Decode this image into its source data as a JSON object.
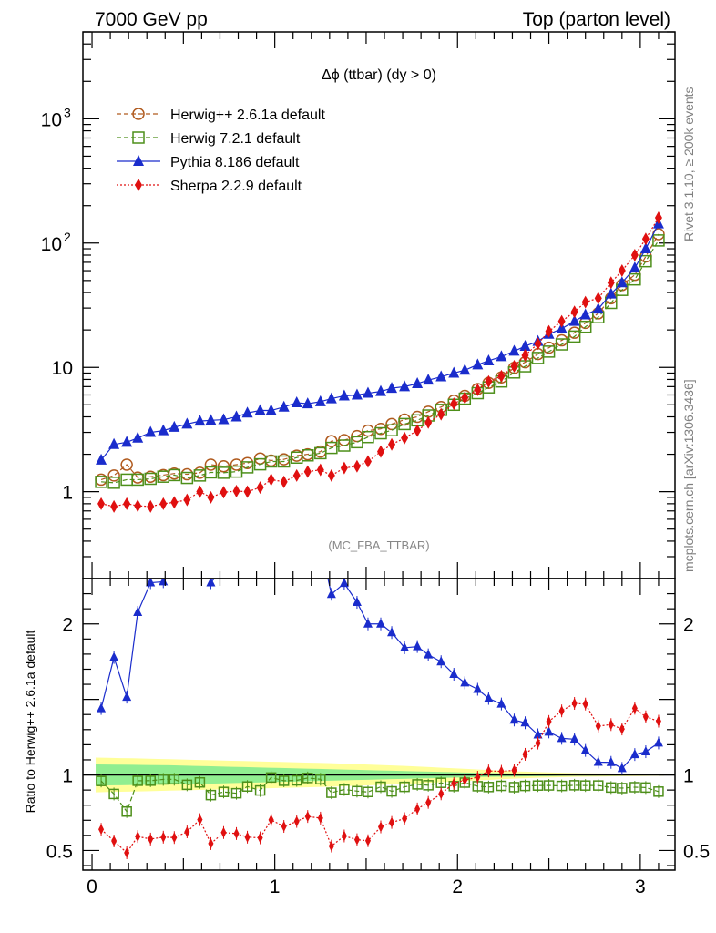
{
  "header": {
    "left": "7000 GeV pp",
    "right": "Top (parton level)"
  },
  "side_labels": {
    "rivet": "Rivet 3.1.10, ≥ 200k events",
    "mcplots": "mcplots.cern.ch [arXiv:1306.3436]"
  },
  "chart_data": {
    "type": "line",
    "title": "Δϕ (ttbar) (dy > 0)",
    "analysis_label": "(MC_FBA_TTBAR)",
    "xlim": [
      -0.05,
      3.19
    ],
    "x_ticks": [
      "0",
      "1",
      "2",
      "3"
    ],
    "main_panel": {
      "yscale": "log",
      "ylim": [
        0.2,
        5000
      ],
      "y_ticks": [
        {
          "value": 1,
          "label": "1"
        },
        {
          "value": 10,
          "label": "10"
        },
        {
          "value": 100,
          "label": "10",
          "exp": "2"
        },
        {
          "value": 1000,
          "label": "10",
          "exp": "3"
        }
      ]
    },
    "ratio_panel": {
      "ylabel": "Ratio to Herwig++ 2.6.1a default",
      "ylim": [
        0.37,
        2.3
      ],
      "y_ticks": [
        {
          "value": 0.5,
          "label": "0.5"
        },
        {
          "value": 1,
          "label": "1"
        },
        {
          "value": 2,
          "label": "2"
        }
      ],
      "band_outer": [
        0.115,
        0.113,
        0.111,
        0.11,
        0.108,
        0.106,
        0.104,
        0.102,
        0.1,
        0.098,
        0.096,
        0.094,
        0.092,
        0.09,
        0.088,
        0.086,
        0.084,
        0.082,
        0.08,
        0.078,
        0.075,
        0.072,
        0.069,
        0.066,
        0.063,
        0.06,
        0.056,
        0.052,
        0.048,
        0.044,
        0.04,
        0.036,
        0.032,
        0.028,
        0.024,
        0.021,
        0.018,
        0.016,
        0.014,
        0.012,
        0.011,
        0.01,
        0.009,
        0.008,
        0.007,
        0.006,
        0.005,
        0.004
      ],
      "band_inner": [
        0.07,
        0.069,
        0.068,
        0.067,
        0.066,
        0.065,
        0.064,
        0.062,
        0.06,
        0.058,
        0.056,
        0.054,
        0.052,
        0.05,
        0.048,
        0.046,
        0.044,
        0.042,
        0.04,
        0.038,
        0.036,
        0.034,
        0.032,
        0.03,
        0.028,
        0.026,
        0.024,
        0.022,
        0.02,
        0.018,
        0.016,
        0.014,
        0.012,
        0.011,
        0.01,
        0.009,
        0.008,
        0.007,
        0.006,
        0.005,
        0.005,
        0.004,
        0.004,
        0.003,
        0.003,
        0.002,
        0.002,
        0.002
      ]
    },
    "x": [
      0.05,
      0.12,
      0.19,
      0.25,
      0.32,
      0.39,
      0.45,
      0.52,
      0.59,
      0.65,
      0.72,
      0.79,
      0.85,
      0.92,
      0.98,
      1.05,
      1.12,
      1.18,
      1.25,
      1.31,
      1.38,
      1.45,
      1.51,
      1.58,
      1.64,
      1.71,
      1.78,
      1.84,
      1.91,
      1.98,
      2.04,
      2.11,
      2.17,
      2.24,
      2.31,
      2.37,
      2.44,
      2.5,
      2.57,
      2.64,
      2.7,
      2.77,
      2.84,
      2.9,
      2.97,
      3.03,
      3.1
    ],
    "series": [
      {
        "name": "Herwig++ 2.6.1a default",
        "color": "#b05a1e",
        "marker": "open-circle",
        "linestyle": "dashed",
        "values": [
          1.25,
          1.35,
          1.65,
          1.3,
          1.32,
          1.36,
          1.4,
          1.38,
          1.42,
          1.65,
          1.6,
          1.65,
          1.7,
          1.85,
          1.78,
          1.82,
          1.95,
          2.0,
          2.1,
          2.55,
          2.6,
          2.8,
          3.1,
          3.2,
          3.5,
          3.8,
          4.0,
          4.4,
          4.8,
          5.4,
          5.9,
          6.7,
          7.5,
          8.3,
          9.9,
          11.0,
          12.8,
          14.4,
          16.5,
          19.0,
          22.8,
          27.2,
          36.0,
          46.0,
          55.5,
          78.0,
          118.0
        ]
      },
      {
        "name": "Herwig 7.2.1 default",
        "color": "#4d8f1a",
        "marker": "open-square",
        "linestyle": "dashed",
        "values": [
          1.2,
          1.18,
          1.25,
          1.25,
          1.27,
          1.32,
          1.36,
          1.29,
          1.35,
          1.43,
          1.42,
          1.45,
          1.57,
          1.66,
          1.75,
          1.75,
          1.88,
          1.96,
          2.04,
          2.25,
          2.35,
          2.5,
          2.75,
          2.95,
          3.12,
          3.5,
          3.75,
          4.1,
          4.55,
          5.0,
          5.6,
          6.2,
          6.9,
          7.7,
          9.1,
          10.2,
          11.9,
          13.4,
          15.3,
          17.7,
          21.2,
          25.3,
          33.0,
          42.0,
          51.0,
          71.5,
          105.0
        ]
      },
      {
        "name": "Pythia 8.186 default",
        "color": "#1a2ccc",
        "marker": "filled-triangle",
        "linestyle": "solid",
        "values": [
          1.8,
          2.4,
          2.5,
          2.7,
          3.0,
          3.1,
          3.3,
          3.5,
          3.7,
          3.75,
          3.8,
          4.0,
          4.3,
          4.5,
          4.5,
          4.8,
          5.2,
          5.1,
          5.3,
          5.6,
          5.9,
          6.0,
          6.2,
          6.4,
          6.8,
          7.0,
          7.4,
          7.9,
          8.4,
          9.0,
          9.5,
          10.5,
          11.3,
          12.2,
          13.5,
          14.8,
          16.2,
          18.5,
          20.5,
          23.5,
          26.5,
          29.5,
          39.0,
          48.0,
          63.0,
          90.0,
          143.0
        ]
      },
      {
        "name": "Sherpa 2.2.9 default",
        "color": "#e01010",
        "marker": "filled-diamond",
        "linestyle": "dotted",
        "values": [
          0.8,
          0.76,
          0.8,
          0.77,
          0.76,
          0.8,
          0.82,
          0.86,
          1.0,
          0.9,
          0.99,
          1.01,
          1.0,
          1.08,
          1.25,
          1.2,
          1.35,
          1.45,
          1.5,
          1.35,
          1.55,
          1.6,
          1.75,
          2.1,
          2.4,
          2.7,
          3.1,
          3.6,
          4.2,
          5.1,
          5.7,
          6.6,
          7.7,
          8.5,
          10.2,
          12.5,
          15.5,
          19.5,
          23.5,
          28.0,
          33.5,
          36.0,
          48.0,
          60.0,
          80.0,
          108.0,
          160.0
        ]
      }
    ]
  }
}
